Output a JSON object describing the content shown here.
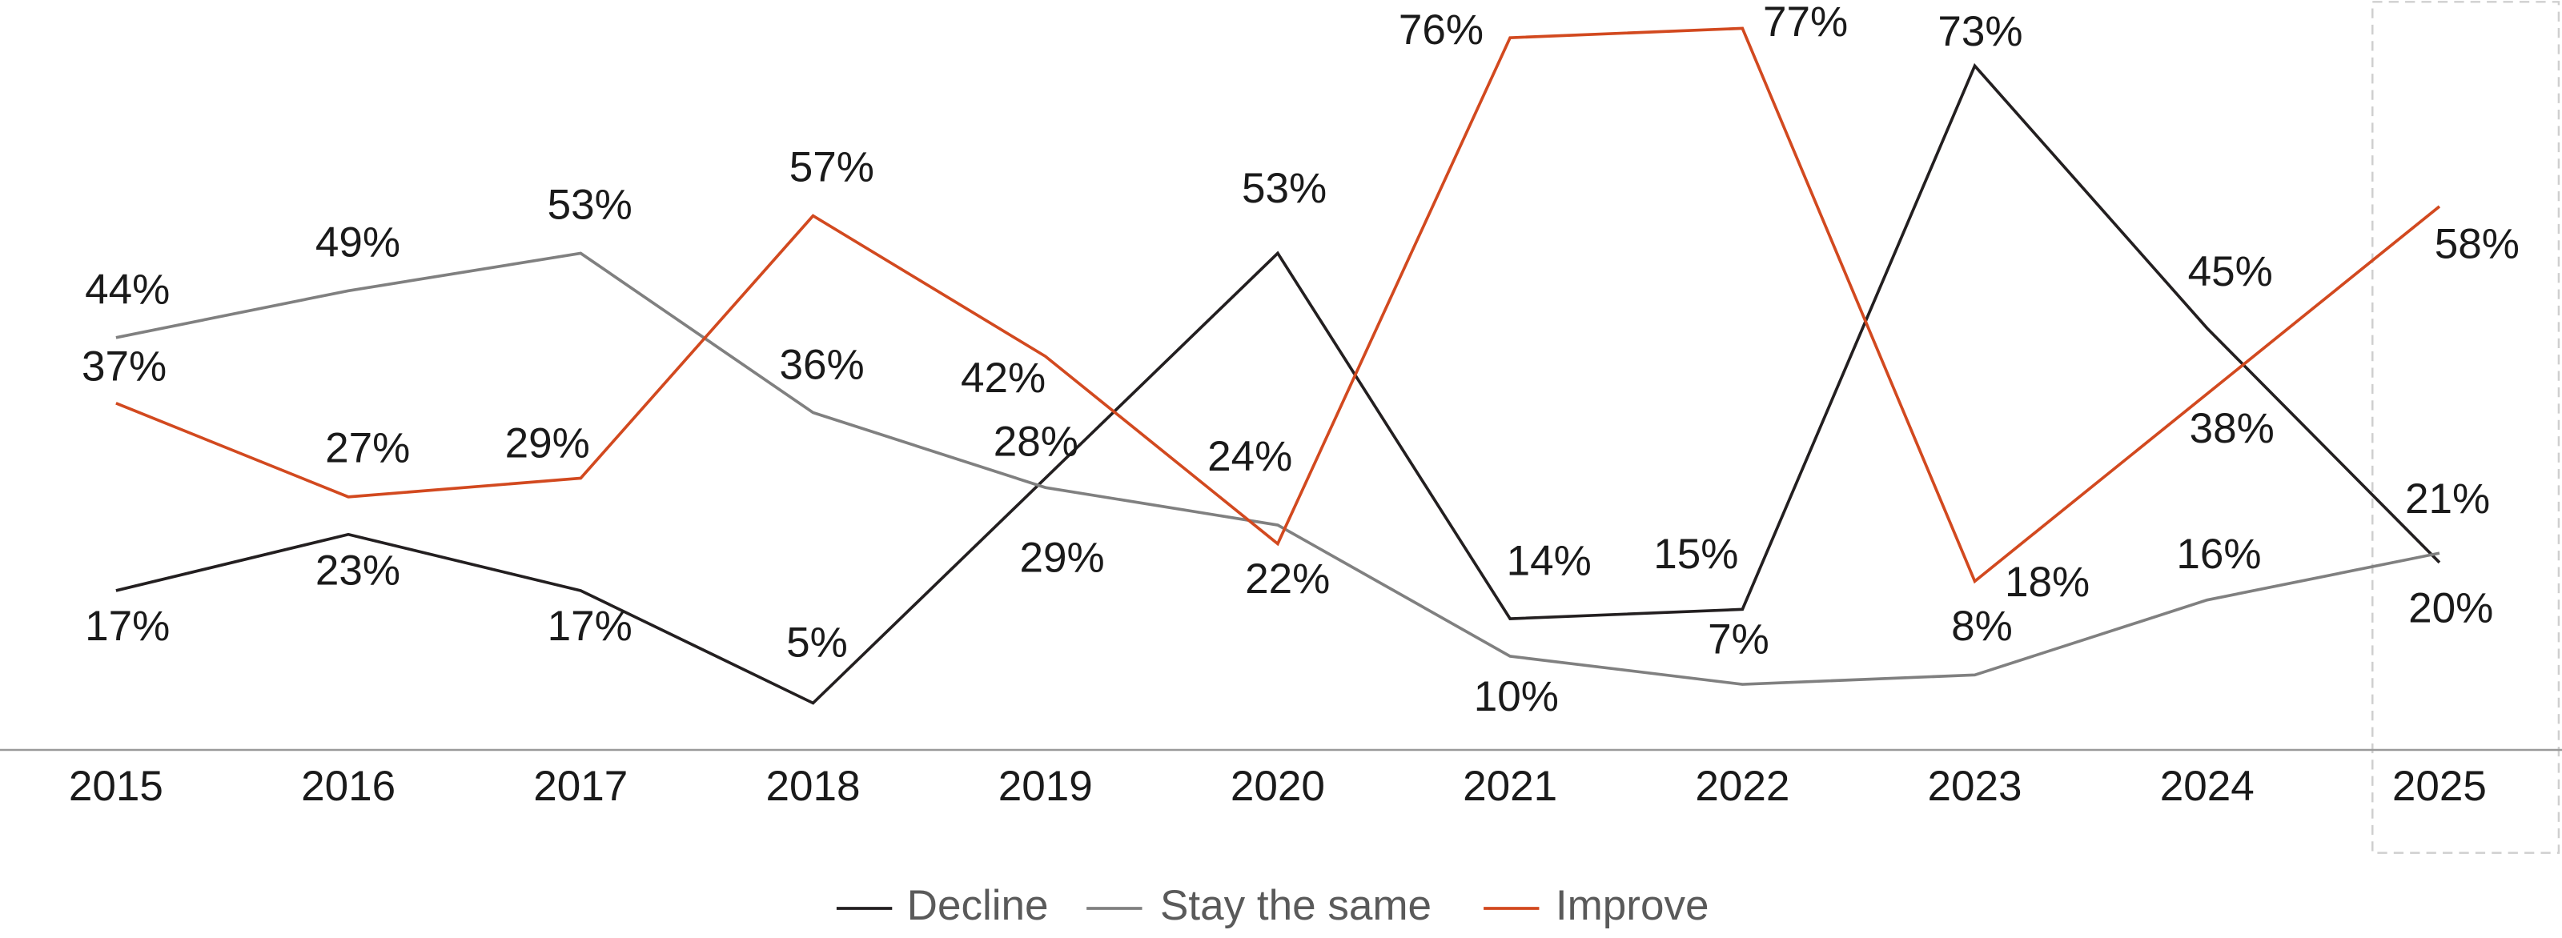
{
  "chart_data": {
    "type": "line",
    "categories": [
      "2015",
      "2016",
      "2017",
      "2018",
      "2019",
      "2020",
      "2021",
      "2022",
      "2023",
      "2024",
      "2025"
    ],
    "series": [
      {
        "name": "Decline",
        "color": "#231f20",
        "values": [
          17,
          23,
          17,
          5,
          29,
          53,
          14,
          15,
          73,
          45,
          20
        ],
        "value_labels": [
          "17%",
          "23%",
          "17%",
          "5%",
          "29%",
          "53%",
          "14%",
          "15%",
          "73%",
          "45%",
          "20%"
        ]
      },
      {
        "name": "Stay the same",
        "color": "#808080",
        "values": [
          44,
          49,
          53,
          36,
          28,
          24,
          10,
          7,
          8,
          16,
          21
        ],
        "value_labels": [
          "44%",
          "49%",
          "53%",
          "36%",
          "28%",
          "24%",
          "10%",
          "7%",
          "8%",
          "16%",
          "21%"
        ]
      },
      {
        "name": "Improve",
        "color": "#d2491f",
        "values": [
          37,
          27,
          29,
          57,
          42,
          22,
          76,
          77,
          18,
          38,
          58
        ],
        "value_labels": [
          "37%",
          "27%",
          "29%",
          "57%",
          "42%",
          "22%",
          "76%",
          "77%",
          "18%",
          "38%",
          "58%"
        ]
      }
    ],
    "ylim": [
      0,
      80
    ]
  }
}
